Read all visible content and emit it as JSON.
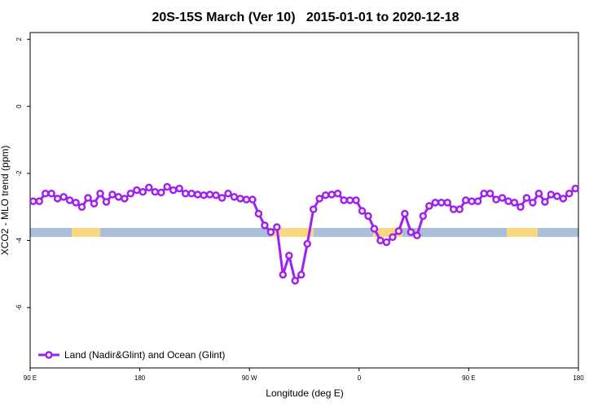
{
  "chart_data": {
    "type": "line",
    "title": "20S-15S March (Ver 10)   2015-01-01 to 2020-12-18",
    "x_label": "Longitude (deg E)",
    "y_label": "XCO2 - MLO trend (ppm)",
    "xlim": [
      90,
      540
    ],
    "ylim": [
      -7.8,
      2.2
    ],
    "xticks": [
      {
        "value": 90,
        "label": "90 E"
      },
      180,
      {
        "value": 270,
        "label": "90 W"
      },
      {
        "value": 360,
        "label": "0"
      },
      {
        "value": 450,
        "label": "90 E"
      },
      {
        "value": 540,
        "label": "180"
      }
    ],
    "yticks": [
      2,
      0,
      -2,
      -4,
      -6
    ],
    "legend": "bottom-left",
    "x": [
      92.5,
      97.5,
      102.5,
      107.5,
      112.5,
      117.5,
      122.5,
      127.5,
      132.5,
      137.5,
      142.5,
      147.5,
      152.5,
      157.5,
      162.5,
      167.5,
      172.5,
      177.5,
      182.5,
      187.5,
      192.5,
      197.5,
      202.5,
      207.5,
      212.5,
      217.5,
      222.5,
      227.5,
      232.5,
      237.5,
      242.5,
      247.5,
      252.5,
      257.5,
      262.5,
      267.5,
      272.5,
      277.5,
      282.5,
      287.5,
      292.5,
      297.5,
      302.5,
      307.5,
      312.5,
      317.5,
      322.5,
      327.5,
      332.5,
      337.5,
      342.5,
      347.5,
      352.5,
      357.5,
      362.5,
      367.5,
      372.5,
      377.5,
      382.5,
      387.5,
      392.5,
      397.5,
      402.5,
      407.5,
      412.5,
      417.5,
      422.5,
      427.5,
      432.5,
      437.5,
      442.5,
      447.5,
      452.5,
      457.5,
      462.5,
      467.5,
      472.5,
      477.5,
      482.5,
      487.5,
      492.5,
      497.5,
      502.5,
      507.5,
      512.5,
      517.5,
      522.5,
      527.5,
      532.5,
      537.5
    ],
    "series": [
      {
        "name": "Land (Nadir&Glint) and Ocean (Glint)",
        "color": "#a020f0",
        "values": [
          -2.83,
          -2.83,
          -2.6,
          -2.6,
          -2.75,
          -2.7,
          -2.8,
          -2.87,
          -3.0,
          -2.73,
          -2.9,
          -2.6,
          -2.85,
          -2.63,
          -2.7,
          -2.75,
          -2.6,
          -2.5,
          -2.55,
          -2.42,
          -2.55,
          -2.57,
          -2.4,
          -2.5,
          -2.45,
          -2.6,
          -2.6,
          -2.63,
          -2.65,
          -2.63,
          -2.65,
          -2.73,
          -2.6,
          -2.7,
          -2.75,
          -2.78,
          -2.78,
          -3.2,
          -3.55,
          -3.75,
          -3.6,
          -5.02,
          -4.45,
          -5.2,
          -5.02,
          -4.1,
          -3.07,
          -2.75,
          -2.65,
          -2.63,
          -2.6,
          -2.8,
          -2.8,
          -2.8,
          -3.12,
          -3.27,
          -3.65,
          -4.0,
          -4.05,
          -3.9,
          -3.72,
          -3.2,
          -3.75,
          -3.85,
          -3.27,
          -2.97,
          -2.87,
          -2.87,
          -2.87,
          -3.07,
          -3.07,
          -2.8,
          -2.83,
          -2.83,
          -2.6,
          -2.6,
          -2.78,
          -2.73,
          -2.83,
          -2.87,
          -3.0,
          -2.73,
          -2.87,
          -2.6,
          -2.85,
          -2.63,
          -2.68,
          -2.75,
          -2.6,
          -2.45
        ]
      }
    ]
  }
}
